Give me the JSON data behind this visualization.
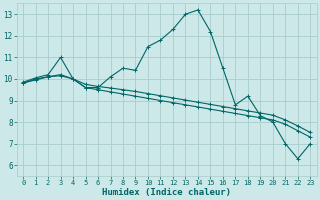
{
  "title": "",
  "xlabel": "Humidex (Indice chaleur)",
  "background_color": "#cce8e8",
  "grid_color": "#aacccc",
  "line_color": "#006666",
  "xlim": [
    -0.5,
    23.5
  ],
  "ylim": [
    5.5,
    13.5
  ],
  "yticks": [
    6,
    7,
    8,
    9,
    10,
    11,
    12,
    13
  ],
  "xticks": [
    0,
    1,
    2,
    3,
    4,
    5,
    6,
    7,
    8,
    9,
    10,
    11,
    12,
    13,
    14,
    15,
    16,
    17,
    18,
    19,
    20,
    21,
    22,
    23
  ],
  "curve1_x": [
    0,
    1,
    2,
    3,
    4,
    5,
    6,
    7,
    8,
    9,
    10,
    11,
    12,
    13,
    14,
    15,
    16,
    17,
    18,
    19,
    20,
    21,
    22,
    23
  ],
  "curve1_y": [
    9.8,
    10.0,
    10.1,
    10.2,
    10.0,
    9.6,
    9.6,
    10.1,
    10.5,
    10.4,
    11.5,
    11.8,
    12.3,
    13.0,
    13.2,
    12.2,
    10.5,
    8.8,
    9.2,
    8.3,
    8.0,
    7.0,
    6.3,
    7.0
  ],
  "curve2_x": [
    0,
    1,
    2,
    3,
    4,
    5,
    6,
    7,
    8,
    9,
    10,
    11,
    12,
    13,
    14,
    15,
    16,
    17,
    18,
    19,
    20,
    21,
    22,
    23
  ],
  "curve2_y": [
    9.85,
    10.05,
    10.2,
    11.0,
    10.0,
    9.6,
    9.5,
    9.4,
    9.3,
    9.2,
    9.1,
    9.0,
    8.9,
    8.8,
    8.7,
    8.6,
    8.5,
    8.4,
    8.3,
    8.2,
    8.1,
    7.9,
    7.6,
    7.3
  ],
  "curve3_x": [
    0,
    1,
    2,
    3,
    4,
    5,
    6,
    7,
    8,
    9,
    10,
    11,
    12,
    13,
    14,
    15,
    16,
    17,
    18,
    19,
    20,
    21,
    22,
    23
  ],
  "curve3_y": [
    9.82,
    9.95,
    10.1,
    10.15,
    10.0,
    9.75,
    9.65,
    9.58,
    9.5,
    9.42,
    9.32,
    9.22,
    9.12,
    9.02,
    8.92,
    8.82,
    8.72,
    8.62,
    8.52,
    8.42,
    8.32,
    8.1,
    7.82,
    7.52
  ]
}
